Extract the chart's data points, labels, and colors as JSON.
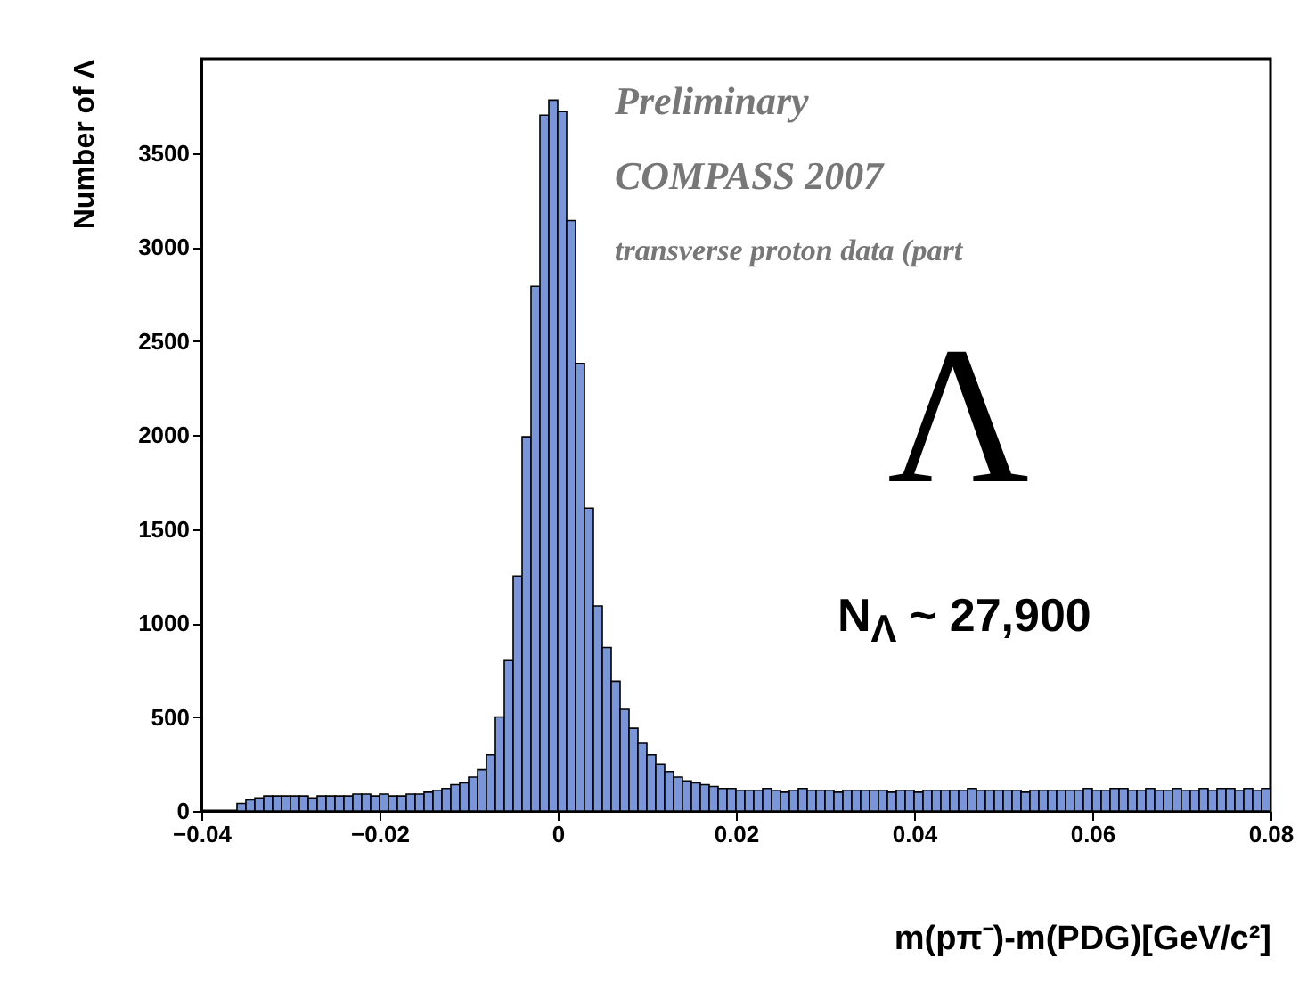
{
  "chart_data": {
    "type": "histogram",
    "xlabel": "m(pπ⁻)-m(PDG)[GeV/c²]",
    "ylabel": "Number of Λ",
    "annotations": [
      "Preliminary",
      "COMPASS 2007",
      "transverse proton data (part",
      "Λ",
      "N$_{Λ}$ ~ 27,900"
    ],
    "bins": [
      -0.04,
      -0.039,
      -0.038,
      -0.037,
      -0.036,
      -0.035,
      -0.034,
      -0.033,
      -0.032,
      -0.031,
      -0.03,
      -0.029,
      -0.028,
      -0.027,
      -0.026,
      -0.025,
      -0.024,
      -0.023,
      -0.022,
      -0.021,
      -0.02,
      -0.019,
      -0.018,
      -0.017,
      -0.016,
      -0.015,
      -0.014,
      -0.013,
      -0.012,
      -0.011,
      -0.01,
      -0.009,
      -0.008,
      -0.007,
      -0.006,
      -0.005,
      -0.004,
      -0.003,
      -0.002,
      -0.001,
      0,
      0.001,
      0.002,
      0.003,
      0.004,
      0.005,
      0.006,
      0.007,
      0.008,
      0.009,
      0.01,
      0.011,
      0.012,
      0.013,
      0.014,
      0.015,
      0.016,
      0.017,
      0.018,
      0.019,
      0.02,
      0.021,
      0.022,
      0.023,
      0.024,
      0.025,
      0.026,
      0.027,
      0.028,
      0.029,
      0.03,
      0.031,
      0.032,
      0.033,
      0.034,
      0.035,
      0.036,
      0.037,
      0.038,
      0.039,
      0.04,
      0.041,
      0.042,
      0.043,
      0.044,
      0.045,
      0.046,
      0.047,
      0.048,
      0.049,
      0.05,
      0.051,
      0.052,
      0.053,
      0.054,
      0.055,
      0.056,
      0.057,
      0.058,
      0.059,
      0.06,
      0.061,
      0.062,
      0.063,
      0.064,
      0.065,
      0.066,
      0.067,
      0.068,
      0.069,
      0.07,
      0.071,
      0.072,
      0.073,
      0.074,
      0.075,
      0.076,
      0.077,
      0.078,
      0.079,
      0.08
    ],
    "values": [
      0,
      0,
      0,
      0,
      40,
      60,
      70,
      80,
      80,
      80,
      80,
      80,
      70,
      80,
      80,
      80,
      80,
      90,
      90,
      80,
      90,
      80,
      80,
      90,
      90,
      100,
      110,
      120,
      140,
      150,
      180,
      220,
      300,
      500,
      800,
      1250,
      1990,
      2790,
      3700,
      3780,
      3720,
      3140,
      2380,
      1610,
      1090,
      870,
      690,
      540,
      440,
      360,
      300,
      250,
      210,
      180,
      160,
      150,
      140,
      130,
      120,
      120,
      110,
      110,
      110,
      120,
      110,
      100,
      110,
      120,
      110,
      110,
      110,
      100,
      110,
      110,
      110,
      110,
      110,
      100,
      110,
      110,
      100,
      110,
      110,
      110,
      110,
      110,
      120,
      110,
      110,
      110,
      110,
      110,
      100,
      110,
      110,
      110,
      110,
      110,
      110,
      120,
      110,
      110,
      120,
      120,
      110,
      110,
      120,
      110,
      110,
      120,
      110,
      110,
      120,
      110,
      120,
      120,
      110,
      120,
      110,
      120
    ],
    "color": "#7b96d6",
    "xlim": [
      -0.04,
      0.08
    ],
    "xticks": [
      -0.04,
      -0.02,
      0,
      0.02,
      0.04,
      0.06,
      0.08
    ],
    "ylim": [
      0,
      4000
    ],
    "yticks": [
      0,
      500,
      1000,
      1500,
      2000,
      2500,
      3000,
      3500
    ],
    "grid": false
  }
}
